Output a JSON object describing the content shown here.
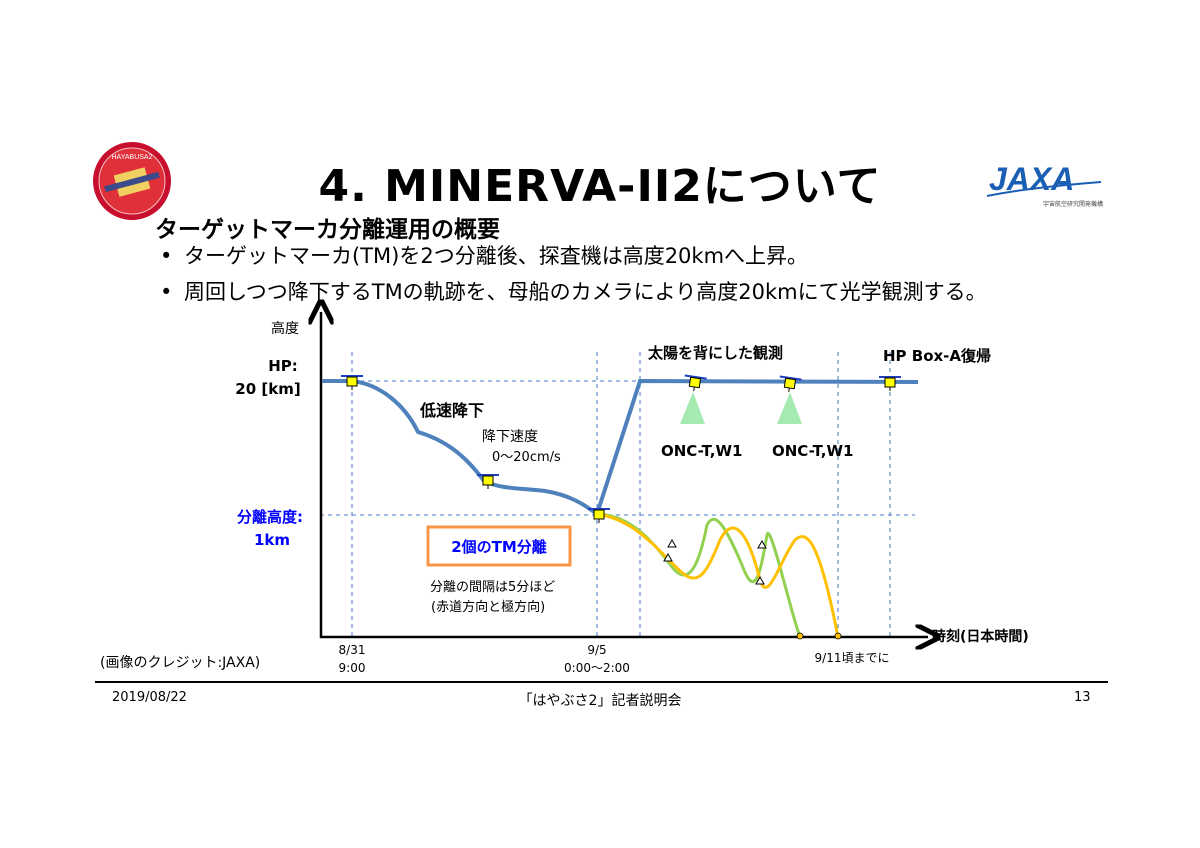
{
  "slide": {
    "title": "4. MINERVA-II2について",
    "subtitle": "ターゲットマーカ分離運用の概要",
    "bullets": [
      "ターゲットマーカ(TM)を2つ分離後、探査機は高度20kmへ上昇。",
      "周回しつつ降下するTMの軌跡を、母船のカメラにより高度20kmにて光学観測する。"
    ],
    "credit": "(画像のクレジット:JAXA)",
    "footer": {
      "date": "2019/08/22",
      "event": "「はやぶさ2」記者説明会",
      "page": "13"
    }
  },
  "logos": {
    "hayabusa_text": "HAYABUSA2",
    "jaxa_text": "JAXA",
    "jaxa_subtext": "宇宙航空研究開発機構"
  },
  "diagram": {
    "y_axis_label": "高度",
    "x_axis_label": "時刻(日本時間)",
    "hp_label_1": "HP:",
    "hp_label_2": "20 [km]",
    "sep_alt_label_1": "分離高度:",
    "sep_alt_label_2": "1km",
    "slow_descent": "低速降下",
    "descent_rate_1": "降下速度",
    "descent_rate_2": "0〜20cm/s",
    "sun_obs": "太陽を背にした観測",
    "hp_return": "HP Box-A復帰",
    "onc_1": "ONC-T,W1",
    "onc_2": "ONC-T,W1",
    "sep_box": "2個のTM分離",
    "sep_note_1": "分離の間隔は5分ほど",
    "sep_note_2": "(赤道方向と極方向)",
    "tick_1_a": "8/31",
    "tick_1_b": "9:00",
    "tick_2_a": "9/5",
    "tick_2_b": "0:00〜2:00",
    "tick_3": "9/11頃までに"
  },
  "colors": {
    "trajectory": "#4f81bd",
    "tm_green": "#92d050",
    "tm_orange": "#ffc000",
    "sep_box_border": "#f79646",
    "sep_label": "#0000ff",
    "camera_cone": "#9be8a8",
    "guide_lines": "#4a7bc6"
  }
}
